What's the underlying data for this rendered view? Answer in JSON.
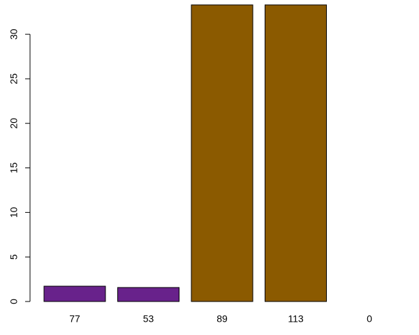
{
  "chart_data": {
    "type": "bar",
    "categories": [
      "77",
      "53",
      "89",
      "113",
      "0"
    ],
    "values": [
      1.72,
      1.57,
      33.3,
      33.3,
      0
    ],
    "colors": [
      "#68228b",
      "#68228b",
      "#8b5a00",
      "#8b5a00",
      "#8b5a00"
    ],
    "ylim": [
      0,
      33.3
    ],
    "yticks": [
      0,
      5,
      10,
      15,
      20,
      25,
      30
    ]
  }
}
